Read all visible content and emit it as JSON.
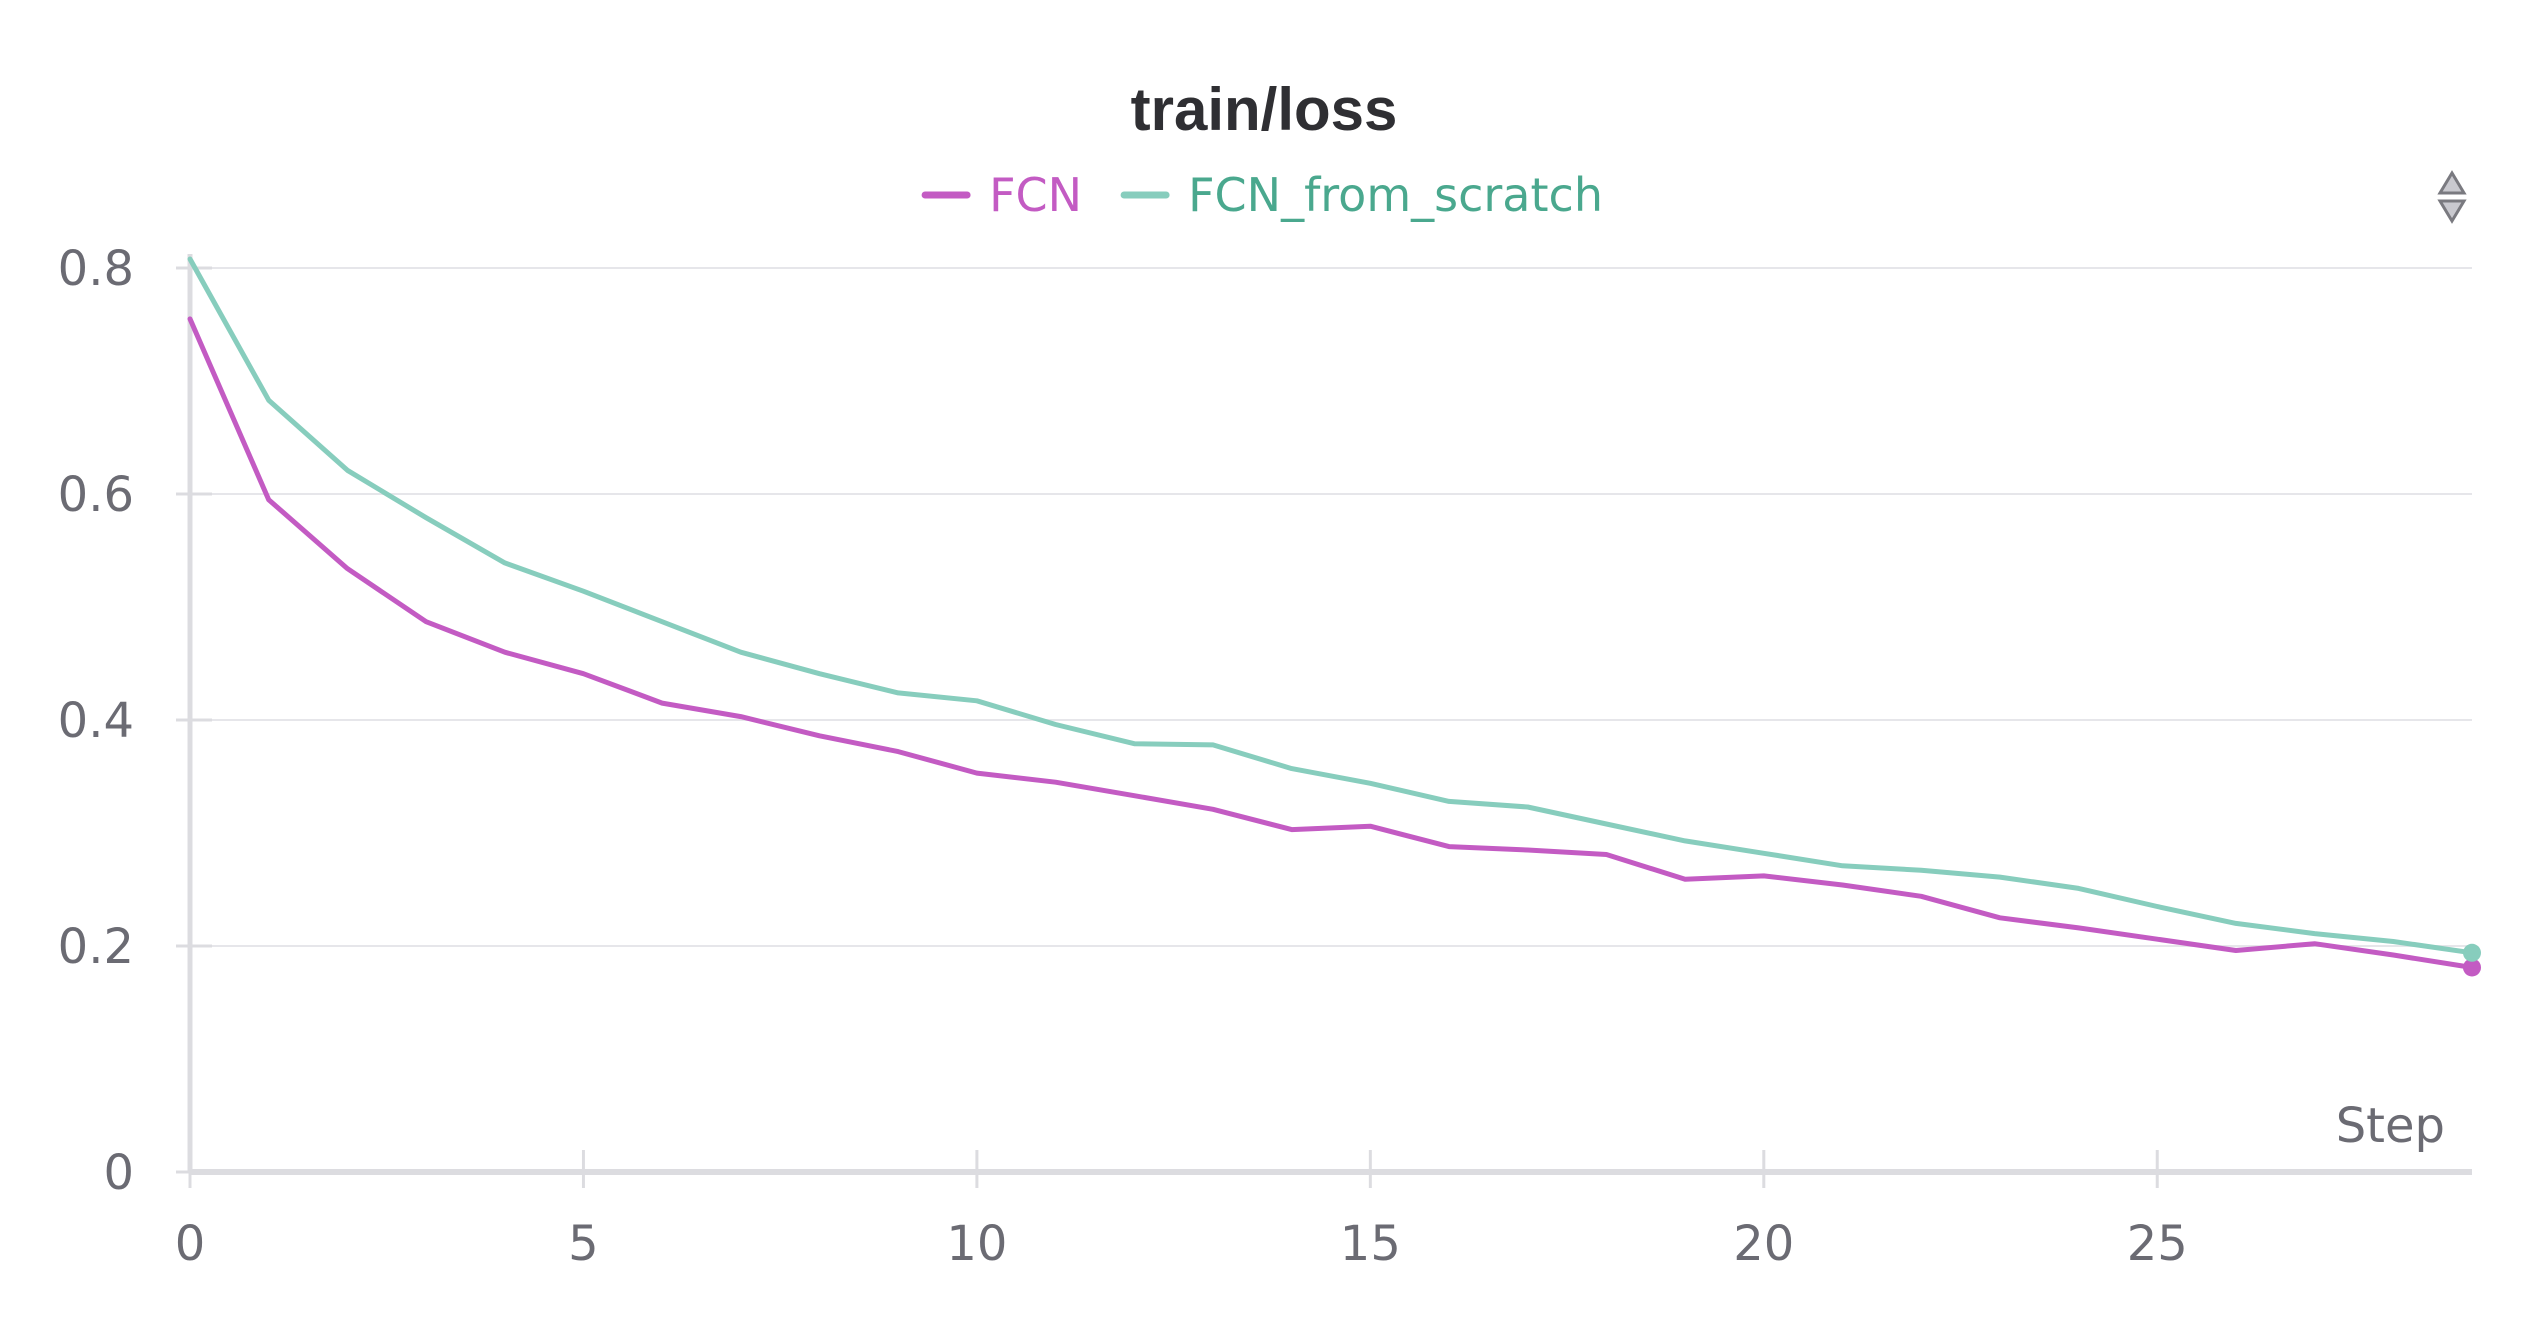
{
  "chart_data": {
    "type": "line",
    "title": "train/loss",
    "xlabel": "Step",
    "ylabel": "",
    "xlim": [
      0,
      29
    ],
    "ylim": [
      0,
      0.8
    ],
    "xticks": [
      0,
      5,
      10,
      15,
      20,
      25
    ],
    "xtick_labels": [
      "0",
      "5",
      "10",
      "15",
      "20",
      "25"
    ],
    "yticks": [
      0,
      0.2,
      0.4,
      0.6,
      0.8
    ],
    "ytick_labels": [
      "0",
      "0.2",
      "0.4",
      "0.6",
      "0.8"
    ],
    "grid": "horizontal",
    "legend_position": "top-center",
    "x": [
      0,
      1,
      2,
      3,
      4,
      5,
      6,
      7,
      8,
      9,
      10,
      11,
      12,
      13,
      14,
      15,
      16,
      17,
      18,
      19,
      20,
      21,
      22,
      23,
      24,
      25,
      26,
      27,
      28,
      29
    ],
    "series": [
      {
        "name": "FCN",
        "color": "#c35bc3",
        "values": [
          0.755,
          0.595,
          0.534,
          0.487,
          0.46,
          0.441,
          0.415,
          0.403,
          0.386,
          0.372,
          0.353,
          0.345,
          0.333,
          0.321,
          0.303,
          0.306,
          0.288,
          0.285,
          0.281,
          0.259,
          0.262,
          0.254,
          0.244,
          0.225,
          0.216,
          0.206,
          0.196,
          0.202,
          0.192,
          0.181
        ]
      },
      {
        "name": "FCN_from_scratch",
        "color": "#87cdbd",
        "values": [
          0.808,
          0.683,
          0.621,
          0.579,
          0.539,
          0.514,
          0.487,
          0.46,
          0.441,
          0.424,
          0.417,
          0.396,
          0.379,
          0.378,
          0.357,
          0.344,
          0.328,
          0.323,
          0.308,
          0.293,
          0.282,
          0.271,
          0.267,
          0.261,
          0.251,
          0.235,
          0.22,
          0.211,
          0.204,
          0.194
        ]
      }
    ]
  },
  "legend_text_colors": [
    "#c35bc3",
    "#4aa88e"
  ],
  "icons": {
    "corner": "sort-arrows-icon"
  }
}
